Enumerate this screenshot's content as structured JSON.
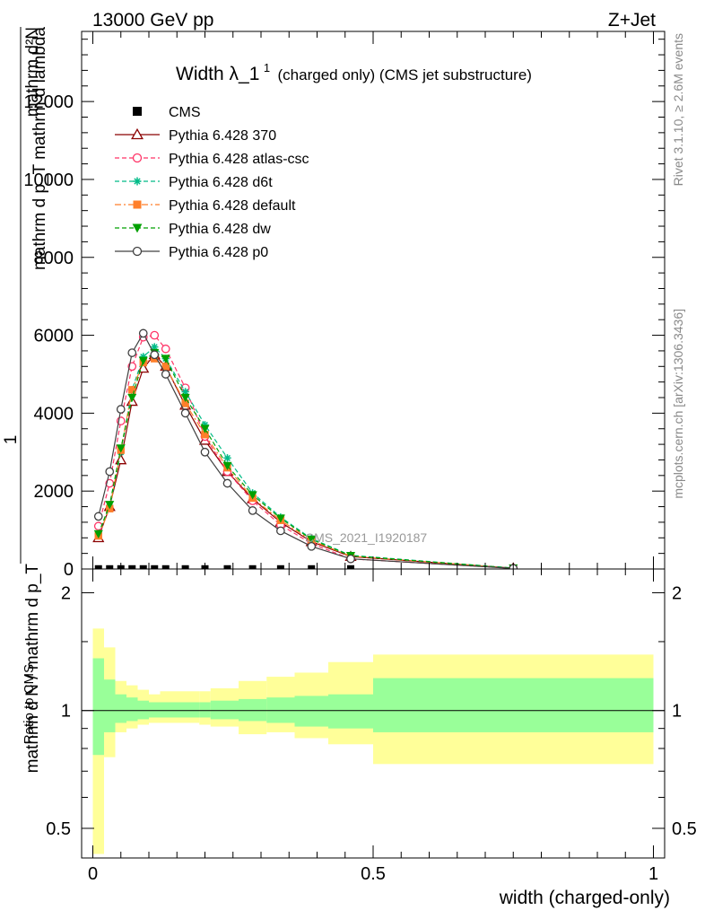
{
  "header": {
    "energy_label": "13000 GeV pp",
    "process_label": "Z+Jet"
  },
  "side_labels": {
    "rivet": "Rivet 3.1.10, ≥ 2.6M events",
    "mcplots": "mcplots.cern.ch [arXiv:1306.3436]"
  },
  "watermark": "CMS_2021_I1920187",
  "chart_data": [
    {
      "type": "line",
      "title_main": "Width λ_1",
      "title_sup": "1",
      "title_tail": "(charged only) (CMS jet substructure)",
      "ylabel_numerator_top": "mathrm d²N",
      "ylabel_numerator_bottom": "mathrm d p_T mathrm d lambda",
      "ylabel_one": "1",
      "ylabel_denominator": "mathrm d N / mathrm d p_T",
      "xlim": [
        -0.02,
        1.02
      ],
      "ylim": [
        0,
        13800
      ],
      "yticks": [
        0,
        2000,
        4000,
        6000,
        8000,
        10000,
        12000
      ],
      "ytick_labels": [
        "0",
        "2000",
        "4000",
        "6000",
        "8000",
        "10000",
        "12000"
      ],
      "x": [
        0.01,
        0.03,
        0.05,
        0.07,
        0.09,
        0.11,
        0.13,
        0.165,
        0.2,
        0.24,
        0.285,
        0.335,
        0.39,
        0.46,
        0.75
      ],
      "series": [
        {
          "name": "CMS",
          "color": "#000000",
          "marker": "square",
          "dash": "none",
          "values": [
            5,
            5,
            5,
            5,
            5,
            5,
            5,
            5,
            5,
            5,
            5,
            5,
            5,
            5,
            5
          ]
        },
        {
          "name": "Pythia 6.428 370",
          "color": "#8b0000",
          "marker": "triangle-open",
          "dash": "solid",
          "values": [
            800,
            1600,
            2800,
            4300,
            5150,
            5500,
            5200,
            4200,
            3300,
            2500,
            1800,
            1200,
            700,
            320,
            20
          ]
        },
        {
          "name": "Pythia 6.428 atlas-csc",
          "color": "#ff3366",
          "marker": "circle-open",
          "dash": "dashed",
          "values": [
            1100,
            2200,
            3800,
            5200,
            5950,
            6000,
            5650,
            4650,
            3400,
            2500,
            1750,
            1130,
            650,
            260,
            15
          ]
        },
        {
          "name": "Pythia 6.428 d6t",
          "color": "#00bb88",
          "marker": "star",
          "dash": "dashed",
          "values": [
            900,
            1600,
            3000,
            4600,
            5450,
            5700,
            5400,
            4550,
            3700,
            2850,
            1950,
            1330,
            780,
            350,
            25
          ]
        },
        {
          "name": "Pythia 6.428 default",
          "color": "#ff7f2a",
          "marker": "square",
          "dash": "dashdot",
          "values": [
            850,
            1550,
            3050,
            4600,
            5300,
            5400,
            5200,
            4250,
            3450,
            2600,
            1820,
            1250,
            730,
            330,
            20
          ]
        },
        {
          "name": "Pythia 6.428 dw",
          "color": "#00a000",
          "marker": "triangle-down",
          "dash": "dashed",
          "values": [
            900,
            1650,
            3100,
            4400,
            5350,
            5550,
            5400,
            4400,
            3600,
            2650,
            1900,
            1300,
            760,
            340,
            20
          ]
        },
        {
          "name": "Pythia 6.428 p0",
          "color": "#404040",
          "marker": "circle-open",
          "dash": "solid",
          "values": [
            1350,
            2500,
            4100,
            5550,
            6050,
            5500,
            5000,
            4000,
            3000,
            2200,
            1500,
            980,
            580,
            260,
            15
          ]
        }
      ]
    },
    {
      "type": "area",
      "ylabel": "Ratio to CMS",
      "xlabel": "width (charged-only)",
      "xlim": [
        -0.02,
        1.02
      ],
      "ylim": [
        0.42,
        2.3
      ],
      "xticks": [
        0,
        0.5,
        1
      ],
      "xtick_labels": [
        "0",
        "0.5",
        "1"
      ],
      "yticks": [
        0.5,
        1,
        2
      ],
      "ytick_labels": [
        "0.5",
        "1",
        "2"
      ],
      "reference": 1,
      "bin_edges": [
        0,
        0.02,
        0.04,
        0.06,
        0.08,
        0.1,
        0.12,
        0.14,
        0.19,
        0.21,
        0.26,
        0.31,
        0.36,
        0.42,
        0.5,
        1.0
      ],
      "stat_band": {
        "color": "#99ff99",
        "lower": [
          0.77,
          0.88,
          0.93,
          0.94,
          0.95,
          0.96,
          0.96,
          0.96,
          0.96,
          0.95,
          0.94,
          0.93,
          0.91,
          0.9,
          0.88
        ],
        "upper": [
          1.36,
          1.2,
          1.1,
          1.08,
          1.06,
          1.05,
          1.05,
          1.05,
          1.05,
          1.06,
          1.07,
          1.08,
          1.09,
          1.1,
          1.21
        ]
      },
      "syst_band": {
        "color": "#ffff99",
        "lower": [
          0.43,
          0.76,
          0.88,
          0.9,
          0.92,
          0.93,
          0.93,
          0.93,
          0.92,
          0.91,
          0.87,
          0.88,
          0.85,
          0.82,
          0.73
        ],
        "upper": [
          1.62,
          1.45,
          1.19,
          1.16,
          1.13,
          1.1,
          1.12,
          1.12,
          1.12,
          1.14,
          1.19,
          1.22,
          1.25,
          1.33,
          1.39
        ]
      }
    }
  ]
}
